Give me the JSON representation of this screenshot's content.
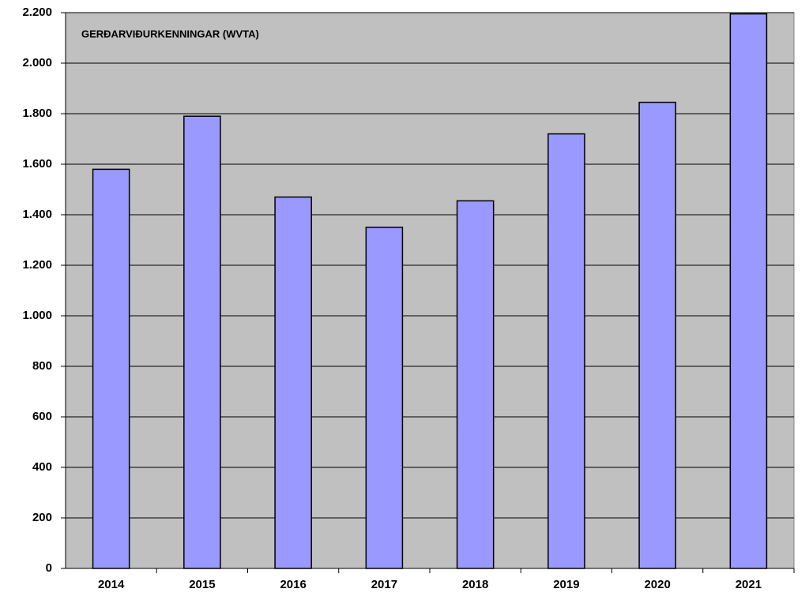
{
  "chart_data": {
    "type": "bar",
    "title": "GERÐARVIÐURKENNINGAR (WVTA)",
    "categories": [
      "2014",
      "2015",
      "2016",
      "2017",
      "2018",
      "2019",
      "2020",
      "2021"
    ],
    "values": [
      1580,
      1790,
      1470,
      1350,
      1455,
      1720,
      1845,
      2195
    ],
    "color": "#9999ff",
    "ylim": [
      0,
      2200
    ],
    "yticks": [
      0,
      200,
      400,
      600,
      800,
      {
        "value": 1000,
        "label": "1.000"
      },
      {
        "value": 1200,
        "label": "1.200"
      },
      {
        "value": 1400,
        "label": "1.400"
      },
      {
        "value": 1600,
        "label": "1.600"
      },
      {
        "value": 1800,
        "label": "1.800"
      },
      {
        "value": 2000,
        "label": "2.000"
      },
      {
        "value": 2200,
        "label": "2.200"
      }
    ],
    "grid": true
  }
}
